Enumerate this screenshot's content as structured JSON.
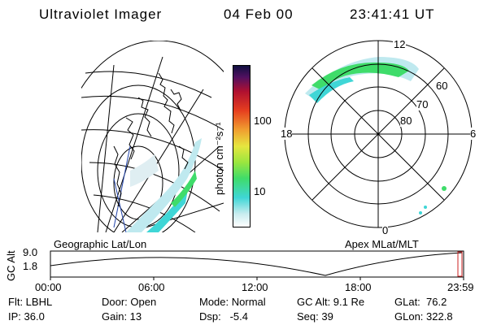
{
  "header": {
    "instrument": "Ultraviolet Imager",
    "date": "04 Feb 00",
    "time": "23:41:41 UT"
  },
  "colorbar": {
    "unit_label": "photon cm⁻²s⁻¹",
    "ticks": [
      "100",
      "10"
    ]
  },
  "polar_plot": {
    "mlt_labels": {
      "top": "12",
      "left": "18",
      "right": "6",
      "bottom": "0"
    },
    "lat_labels": [
      "60",
      "70",
      "80"
    ]
  },
  "map_labels": {
    "left": "Geographic Lat/Lon",
    "right": "Apex MLat/MLT"
  },
  "altitude_plot": {
    "axis_label": "GC Alt",
    "y_ticks": [
      "9.0",
      "1.8"
    ],
    "x_ticks": [
      "00:00",
      "06:00",
      "12:00",
      "18:00",
      "23:59"
    ]
  },
  "status": {
    "flt": "Flt: LBHL",
    "ip": "IP: 36.0",
    "door": "Door: Open",
    "gain": "Gain: 13",
    "mode": "Mode: Normal",
    "dsp": "Dsp:   -5.4",
    "gc_alt": "GC Alt: 9.1 Re",
    "seq": "Seq: 39",
    "glat": "GLat:  76.2",
    "glon": "GLon: 322.8"
  },
  "colors": {
    "aurora_green": "#3fdc6a",
    "aurora_cyan": "#3fd6d6",
    "aurora_pale": "#bfe9ef",
    "marker_red": "#cc2222"
  }
}
